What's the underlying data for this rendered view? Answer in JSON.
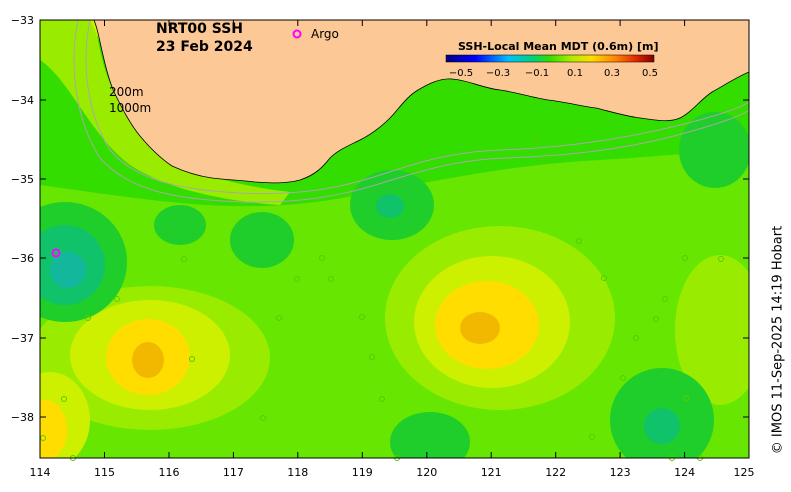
{
  "map": {
    "title": "NRT00 SSH",
    "date": "23 Feb 2024",
    "legend_label": "Argo",
    "colorbar": {
      "title": "SSH-Local Mean MDT (0.6m) [m]",
      "ticks": [
        "−0.5",
        "−0.3",
        "−0.1",
        "0.1",
        "0.3",
        "0.5"
      ]
    },
    "isobaths": {
      "shallow": "200m",
      "deep": "1000m"
    },
    "x_axis": {
      "ticks": [
        "114",
        "115",
        "116",
        "117",
        "118",
        "119",
        "120",
        "121",
        "122",
        "123",
        "124",
        "125"
      ]
    },
    "y_axis": {
      "ticks": [
        "−33",
        "−34",
        "−35",
        "−36",
        "−37",
        "−38"
      ]
    },
    "colors": {
      "land": "#fcc896",
      "argo": "#ff00ff",
      "contour": "#a8a8a8"
    },
    "credit": "© IMOS 11-Sep-2025 14:19 Hobart"
  }
}
